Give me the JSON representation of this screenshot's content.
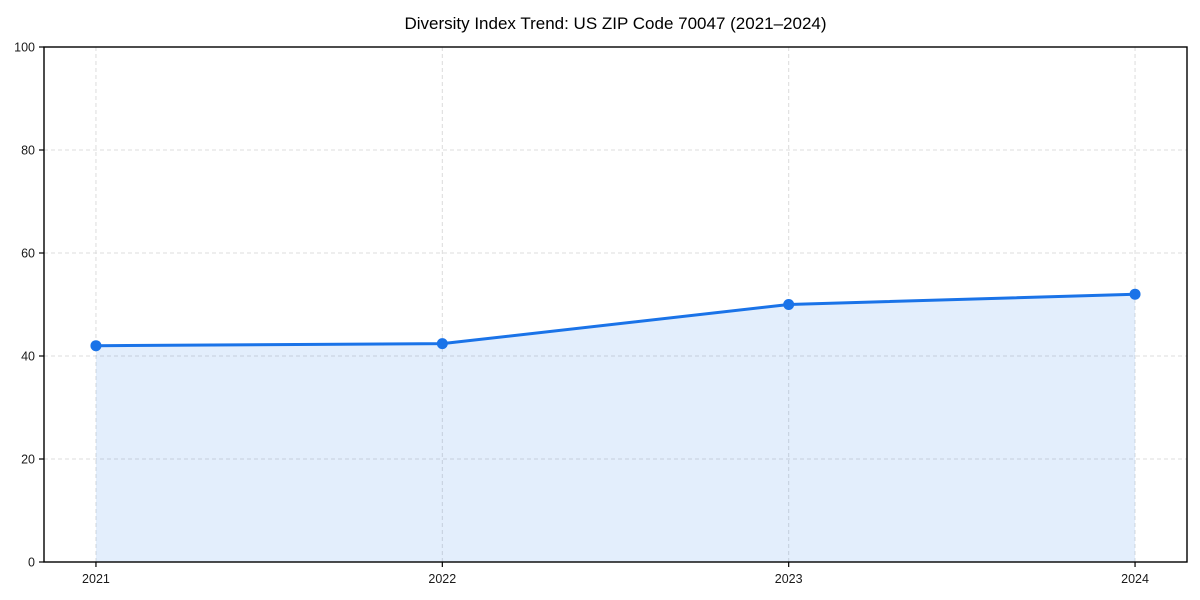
{
  "title": "Diversity Index Trend: US ZIP Code 70047 (2021–2024)",
  "chart_data": {
    "type": "area",
    "x": [
      2021,
      2022,
      2023,
      2024
    ],
    "x_tick_labels": [
      "2021",
      "2022",
      "2023",
      "2024"
    ],
    "series": [
      {
        "name": "Diversity Index",
        "values": [
          42,
          42.4,
          50,
          52
        ]
      }
    ],
    "title": "Diversity Index Trend: US ZIP Code 70047 (2021–2024)",
    "xlabel": "",
    "ylabel": "",
    "ylim": [
      0,
      100
    ],
    "yticks": [
      0,
      20,
      40,
      60,
      80,
      100
    ],
    "grid": true,
    "grid_style": "dashed",
    "legend": false,
    "marker": "circle"
  },
  "colors": {
    "line": "#1a73e8",
    "marker": "#1a73e8",
    "fill": "#1a73e8",
    "fill_opacity": "0.12",
    "grid": "#dcdcdc",
    "axis": "#000000",
    "text": "#1a1a1a",
    "background": "#ffffff"
  }
}
